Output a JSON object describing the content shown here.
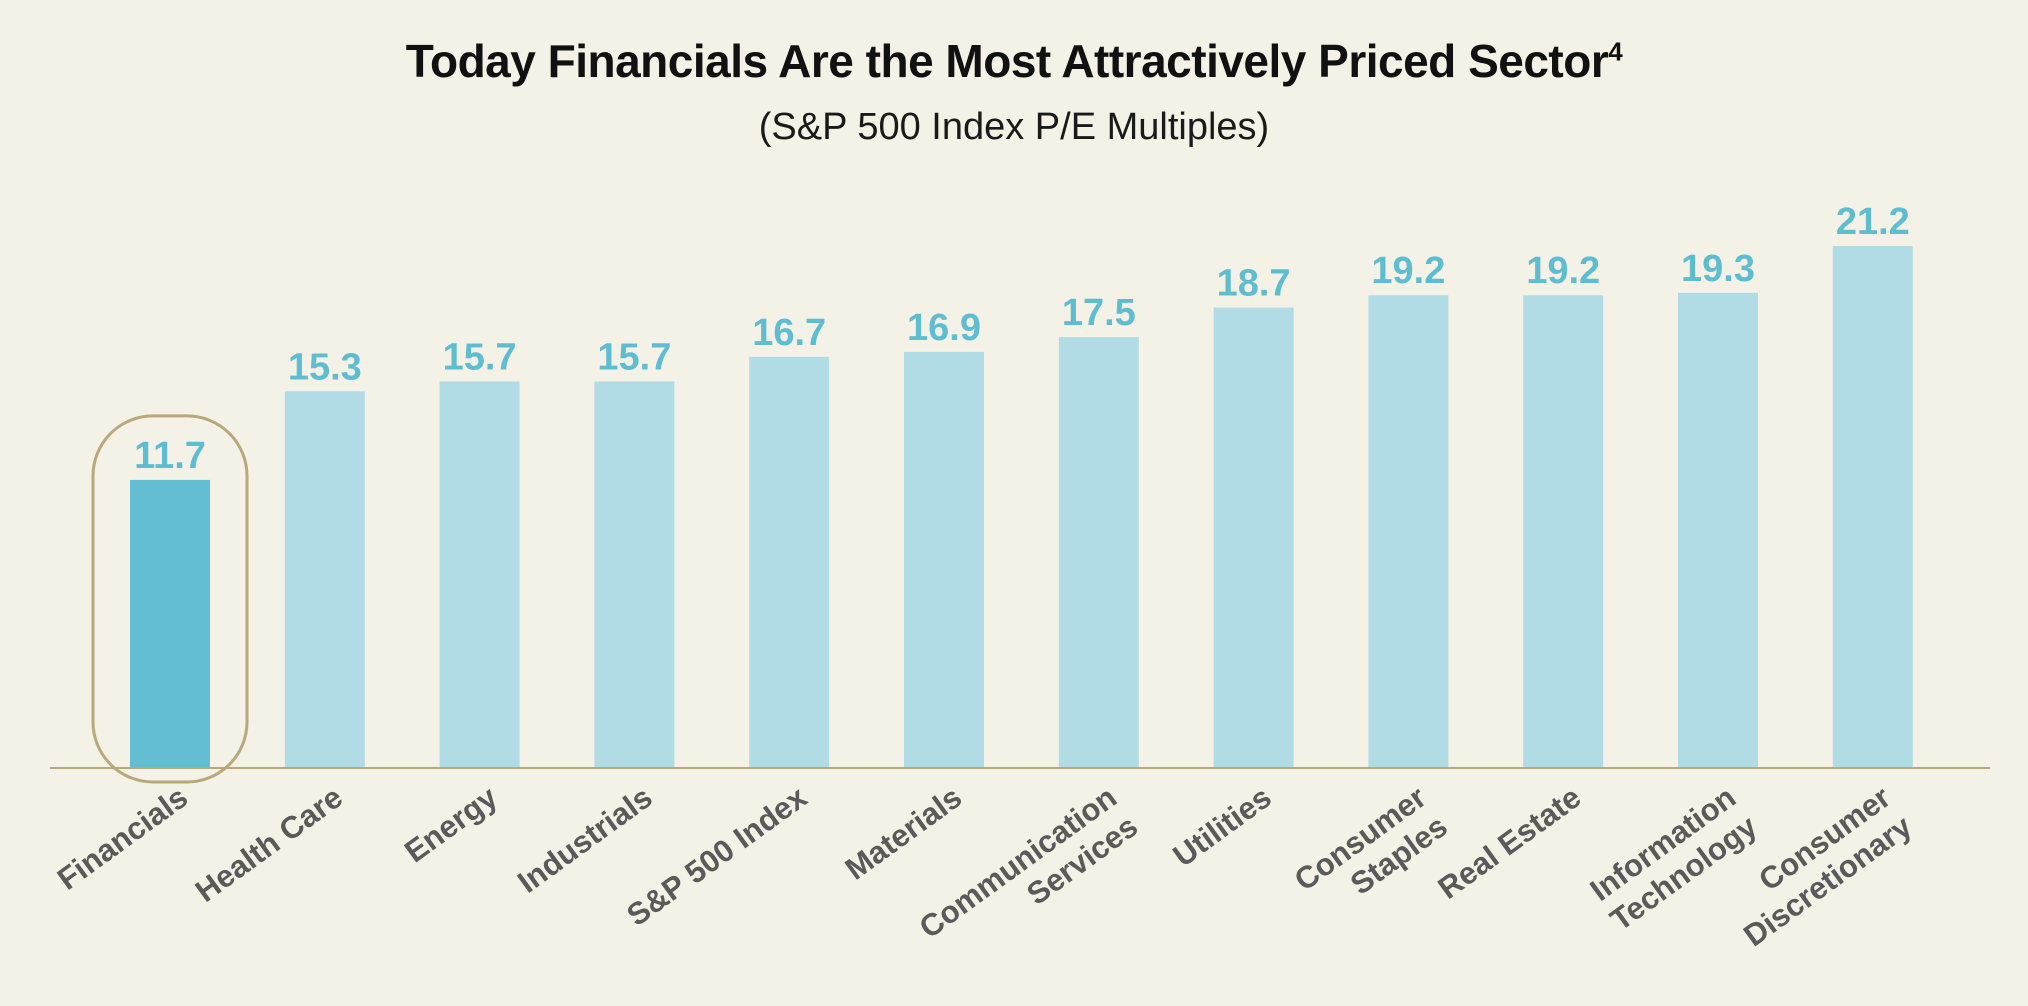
{
  "chart_data": {
    "type": "bar",
    "title": "Today Financials Are the Most Attractively Priced Sector",
    "title_superscript": "4",
    "subtitle": "(S&P 500 Index P/E Multiples)",
    "xlabel": "",
    "ylabel": "",
    "ylim": [
      0,
      21.2
    ],
    "grid": false,
    "legend": "none",
    "highlighted_category": "Financials",
    "categories": [
      [
        "Financials"
      ],
      [
        "Health Care"
      ],
      [
        "Energy"
      ],
      [
        "Industrials"
      ],
      [
        "S&P 500 Index"
      ],
      [
        "Materials"
      ],
      [
        "Communication",
        "Services"
      ],
      [
        "Utilities"
      ],
      [
        "Consumer",
        "Staples"
      ],
      [
        "Real Estate"
      ],
      [
        "Information",
        "Technology"
      ],
      [
        "Consumer",
        "Discretionary"
      ]
    ],
    "values": [
      11.7,
      15.3,
      15.7,
      15.7,
      16.7,
      16.9,
      17.5,
      18.7,
      19.2,
      19.2,
      19.3,
      21.2
    ],
    "value_labels": [
      "11.7",
      "15.3",
      "15.7",
      "15.7",
      "16.7",
      "16.9",
      "17.5",
      "18.7",
      "19.2",
      "19.2",
      "19.3",
      "21.2"
    ],
    "colors": {
      "bar": "#b1dce5",
      "highlight_bar": "#63bed3",
      "value_label": "#5fbdd2",
      "axis": "#b9a87a",
      "highlight_outline": "#b9a87a",
      "tick_label": "#5a5a5a"
    }
  }
}
